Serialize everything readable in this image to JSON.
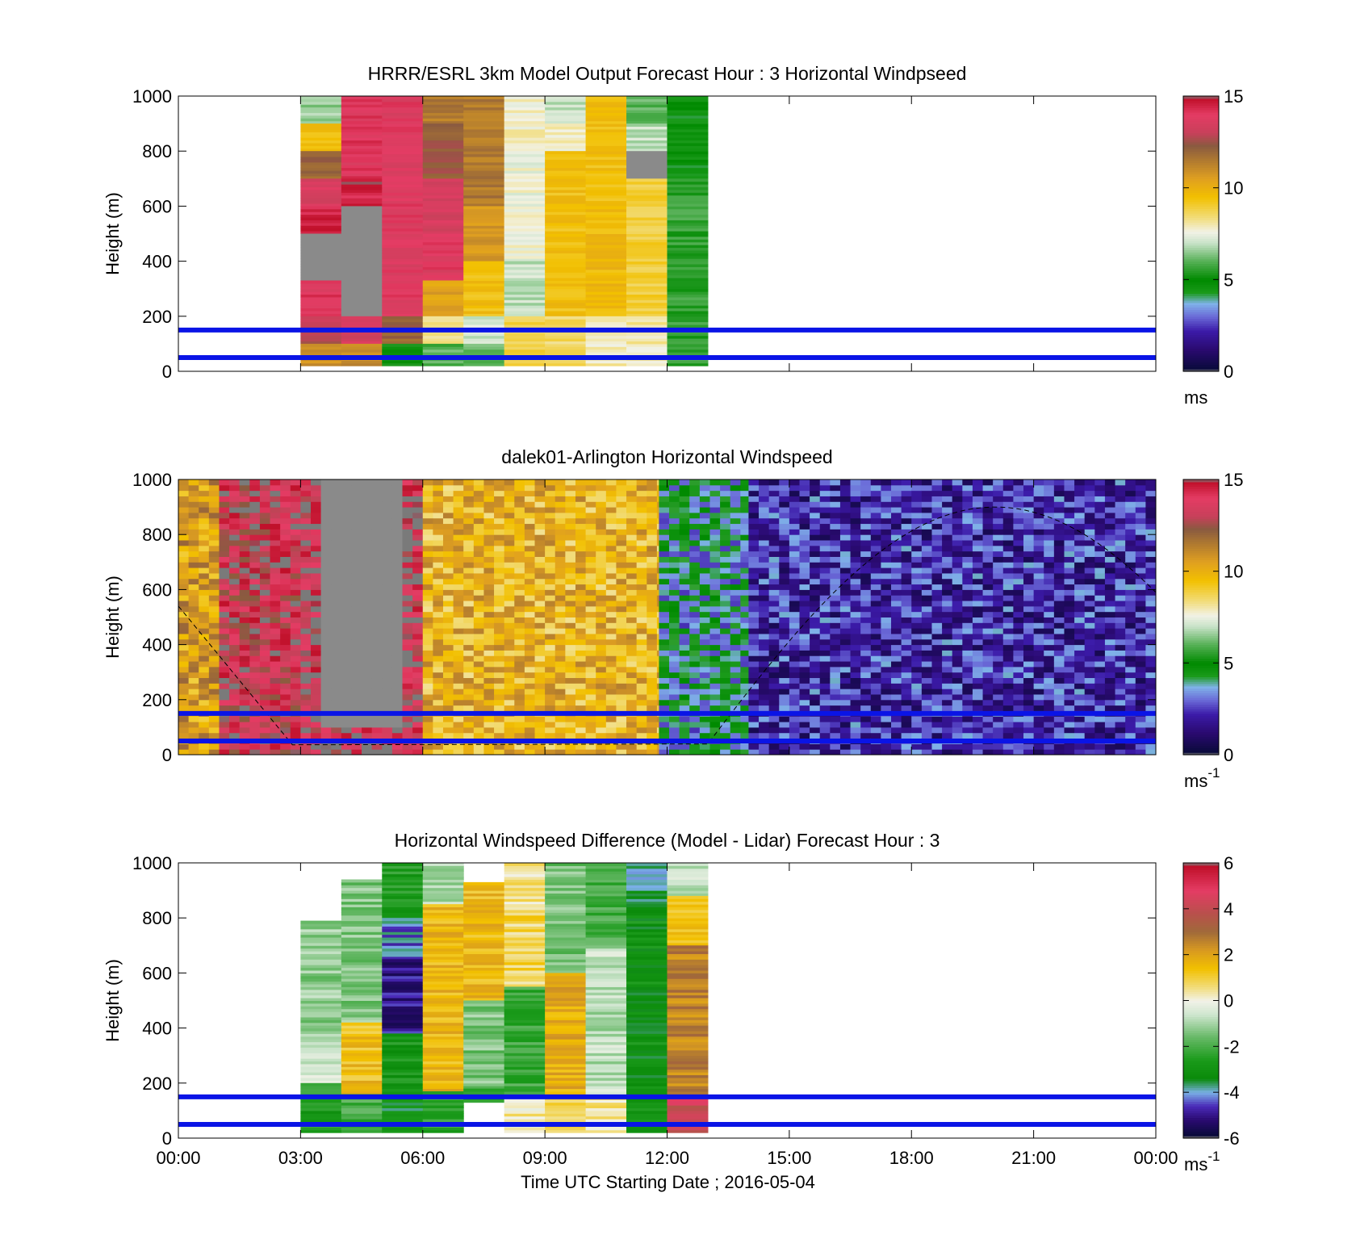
{
  "chart_data": [
    {
      "type": "heatmap",
      "title": "HRRR/ESRL 3km Model Output   Forecast Hour : 3 Horizontal Windpseed",
      "ylabel": "Height (m)",
      "ylim": [
        0,
        1000
      ],
      "yticks": [
        "0",
        "200",
        "400",
        "600",
        "800",
        "1000"
      ],
      "xlim_hours": [
        0,
        24
      ],
      "colorbar": {
        "min": 0,
        "max": 15,
        "ticks": [
          "0",
          "5",
          "10",
          "15"
        ],
        "unit": "ms",
        "colormap": "windspeed"
      },
      "reference_lines_m": [
        50,
        150
      ],
      "reference_line_color": "#0a14e6",
      "columns": [
        {
          "t0": 3,
          "t1": 4,
          "cells": [
            [
              1000,
              900,
              6.5
            ],
            [
              900,
              800,
              9.5
            ],
            [
              800,
              700,
              12
            ],
            [
              700,
              600,
              13.5
            ],
            [
              600,
              500,
              14.5
            ],
            [
              500,
              330,
              "na"
            ],
            [
              330,
              200,
              14
            ],
            [
              200,
              100,
              13
            ],
            [
              100,
              20,
              11
            ]
          ]
        },
        {
          "t0": 4,
          "t1": 5,
          "cells": [
            [
              1000,
              700,
              14
            ],
            [
              700,
              600,
              14.5
            ],
            [
              600,
              200,
              "na"
            ],
            [
              200,
              100,
              13.5
            ],
            [
              100,
              20,
              11
            ]
          ]
        },
        {
          "t0": 5,
          "t1": 6,
          "cells": [
            [
              1000,
              200,
              13.8
            ],
            [
              200,
              100,
              12
            ],
            [
              100,
              20,
              5
            ]
          ]
        },
        {
          "t0": 6,
          "t1": 7,
          "cells": [
            [
              1000,
              900,
              11.5
            ],
            [
              900,
              700,
              12.3
            ],
            [
              700,
              500,
              13.5
            ],
            [
              500,
              330,
              13.8
            ],
            [
              330,
              200,
              10.5
            ],
            [
              200,
              100,
              8
            ],
            [
              100,
              20,
              6
            ]
          ]
        },
        {
          "t0": 7,
          "t1": 8,
          "cells": [
            [
              1000,
              600,
              11.5
            ],
            [
              600,
              400,
              10.8
            ],
            [
              400,
              200,
              9.5
            ],
            [
              200,
              100,
              7.2
            ],
            [
              100,
              20,
              6
            ]
          ]
        },
        {
          "t0": 8,
          "t1": 9,
          "cells": [
            [
              1000,
              800,
              7.8
            ],
            [
              800,
              400,
              7.6
            ],
            [
              400,
              200,
              7
            ],
            [
              200,
              20,
              8.8
            ]
          ]
        },
        {
          "t0": 9,
          "t1": 10,
          "cells": [
            [
              1000,
              900,
              7
            ],
            [
              900,
              800,
              7.8
            ],
            [
              800,
              200,
              9.5
            ],
            [
              200,
              20,
              8.5
            ]
          ]
        },
        {
          "t0": 10,
          "t1": 11,
          "cells": [
            [
              1000,
              600,
              9.5
            ],
            [
              600,
              200,
              9.7
            ],
            [
              200,
              20,
              8
            ]
          ]
        },
        {
          "t0": 11,
          "t1": 12,
          "cells": [
            [
              1000,
              900,
              6
            ],
            [
              900,
              800,
              7
            ],
            [
              800,
              700,
              "na"
            ],
            [
              700,
              200,
              9
            ],
            [
              200,
              20,
              8
            ]
          ]
        },
        {
          "t0": 12,
          "t1": 13,
          "cells": [
            [
              1000,
              700,
              4.6
            ],
            [
              700,
              20,
              5.6
            ]
          ]
        }
      ]
    },
    {
      "type": "heatmap",
      "title": "dalek01-Arlington  Horizontal Windspeed",
      "ylabel": "Height (m)",
      "ylim": [
        0,
        1000
      ],
      "yticks": [
        "0",
        "200",
        "400",
        "600",
        "800",
        "1000"
      ],
      "xlim_hours": [
        0,
        24
      ],
      "colorbar": {
        "min": 0,
        "max": 15,
        "ticks": [
          "0",
          "5",
          "10",
          "15"
        ],
        "unit": "ms",
        "unit_exp": "-1",
        "colormap": "windspeed"
      },
      "reference_lines_m": [
        50,
        150
      ],
      "reference_line_color": "#0a14e6",
      "segments": [
        {
          "t0": 0,
          "t1": 1,
          "value": 10.5
        },
        {
          "t0": 1,
          "t1": 3,
          "value": 13.8
        },
        {
          "t0": 3,
          "t1": 6,
          "value": 14.2,
          "gap": {
            "t0": 3.4,
            "t1": 5.6,
            "h0": 100,
            "h1": 1000,
            "value": "na"
          }
        },
        {
          "t0": 6,
          "t1": 11.8,
          "value": 9.8
        },
        {
          "t0": 11.8,
          "t1": 14,
          "value": 4
        },
        {
          "t0": 14,
          "t1": 24,
          "value": 2.2
        }
      ],
      "dashed_curve": "solar elevation"
    },
    {
      "type": "heatmap",
      "title": "Horizontal Windspeed Difference (Model - Lidar) Forecast Hour : 3",
      "xlabel": "Time UTC  Starting Date ; 2016-05-04",
      "ylabel": "Height (m)",
      "ylim": [
        0,
        1000
      ],
      "yticks": [
        "0",
        "200",
        "400",
        "600",
        "800",
        "1000"
      ],
      "xticks": [
        "00:00",
        "03:00",
        "06:00",
        "09:00",
        "12:00",
        "15:00",
        "18:00",
        "21:00",
        "00:00"
      ],
      "xlim_hours": [
        0,
        24
      ],
      "colorbar": {
        "min": -6,
        "max": 6,
        "ticks": [
          "-6",
          "-4",
          "-2",
          "0",
          "2",
          "4",
          "6"
        ],
        "unit": "ms",
        "unit_exp": "-1",
        "colormap": "difference"
      },
      "reference_lines_m": [
        50,
        150
      ],
      "reference_line_color": "#0a14e6",
      "columns": [
        {
          "t0": 3,
          "t1": 4,
          "cells": [
            [
              790,
              320,
              -1.2
            ],
            [
              320,
              200,
              -0.6
            ],
            [
              200,
              20,
              -2.6
            ]
          ]
        },
        {
          "t0": 4,
          "t1": 5,
          "cells": [
            [
              940,
              420,
              -1.4
            ],
            [
              420,
              160,
              1.4
            ],
            [
              160,
              20,
              -2
            ]
          ]
        },
        {
          "t0": 5,
          "t1": 6,
          "cells": [
            [
              1000,
              800,
              -2.6
            ],
            [
              800,
              650,
              -4.2
            ],
            [
              650,
              380,
              -5
            ],
            [
              380,
              150,
              -2.8
            ],
            [
              150,
              20,
              -3.2
            ]
          ]
        },
        {
          "t0": 6,
          "t1": 7,
          "cells": [
            [
              1000,
              850,
              -1
            ],
            [
              850,
              170,
              1.6
            ],
            [
              170,
              20,
              -2.4
            ]
          ]
        },
        {
          "t0": 7,
          "t1": 8,
          "cells": [
            [
              930,
              500,
              1.5
            ],
            [
              500,
              180,
              -1.4
            ],
            [
              180,
              130,
              -2.4
            ]
          ]
        },
        {
          "t0": 8,
          "t1": 9,
          "cells": [
            [
              1000,
              850,
              0.4
            ],
            [
              850,
              550,
              0.8
            ],
            [
              550,
              150,
              -2.2
            ],
            [
              150,
              20,
              0.3
            ]
          ]
        },
        {
          "t0": 9,
          "t1": 10,
          "cells": [
            [
              1000,
              600,
              -1.5
            ],
            [
              600,
              150,
              1.8
            ],
            [
              150,
              20,
              0.8
            ]
          ]
        },
        {
          "t0": 10,
          "t1": 11,
          "cells": [
            [
              1000,
              700,
              -2
            ],
            [
              700,
              150,
              -0.8
            ],
            [
              150,
              20,
              0.5
            ]
          ]
        },
        {
          "t0": 11,
          "t1": 12,
          "cells": [
            [
              1000,
              850,
              -3.6
            ],
            [
              850,
              20,
              -3
            ]
          ]
        },
        {
          "t0": 12,
          "t1": 13,
          "cells": [
            [
              1000,
              880,
              -0.8
            ],
            [
              880,
              700,
              1.5
            ],
            [
              700,
              150,
              2.6
            ],
            [
              150,
              20,
              4.2
            ]
          ]
        }
      ]
    }
  ]
}
